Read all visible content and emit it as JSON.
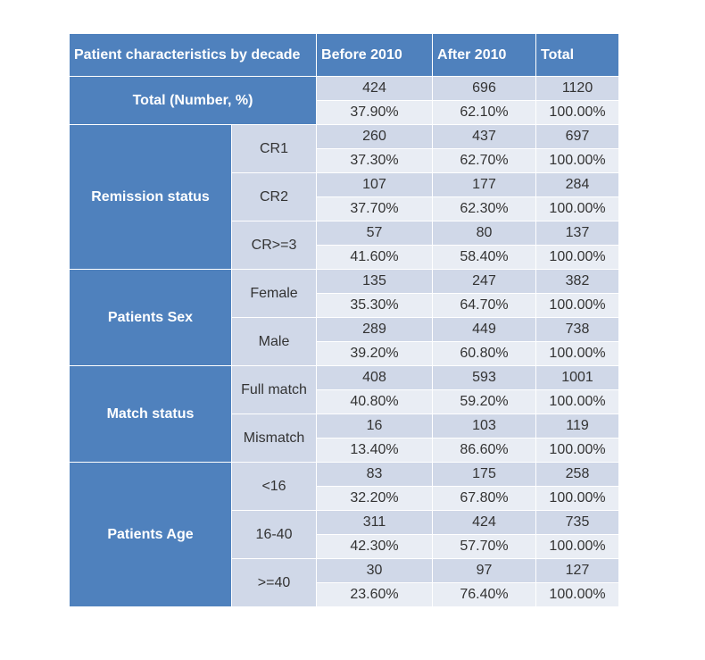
{
  "header": {
    "title": "Patient characteristics by decade",
    "col_before": "Before 2010",
    "col_after": "After 2010",
    "col_total": "Total"
  },
  "total_row": {
    "label": "Total (Number, %)",
    "n": [
      "424",
      "696",
      "1120"
    ],
    "pct": [
      "37.90%",
      "62.10%",
      "100.00%"
    ]
  },
  "groups": [
    {
      "label": "Remission status",
      "rows": [
        {
          "label": "CR1",
          "n": [
            "260",
            "437",
            "697"
          ],
          "pct": [
            "37.30%",
            "62.70%",
            "100.00%"
          ]
        },
        {
          "label": "CR2",
          "n": [
            "107",
            "177",
            "284"
          ],
          "pct": [
            "37.70%",
            "62.30%",
            "100.00%"
          ]
        },
        {
          "label": "CR>=3",
          "n": [
            "57",
            "80",
            "137"
          ],
          "pct": [
            "41.60%",
            "58.40%",
            "100.00%"
          ]
        }
      ]
    },
    {
      "label": "Patients Sex",
      "rows": [
        {
          "label": "Female",
          "n": [
            "135",
            "247",
            "382"
          ],
          "pct": [
            "35.30%",
            "64.70%",
            "100.00%"
          ]
        },
        {
          "label": "Male",
          "n": [
            "289",
            "449",
            "738"
          ],
          "pct": [
            "39.20%",
            "60.80%",
            "100.00%"
          ]
        }
      ]
    },
    {
      "label": "Match status",
      "rows": [
        {
          "label": "Full match",
          "n": [
            "408",
            "593",
            "1001"
          ],
          "pct": [
            "40.80%",
            "59.20%",
            "100.00%"
          ]
        },
        {
          "label": "Mismatch",
          "n": [
            "16",
            "103",
            "119"
          ],
          "pct": [
            "13.40%",
            "86.60%",
            "100.00%"
          ]
        }
      ]
    },
    {
      "label": "Patients Age",
      "rows": [
        {
          "label": "<16",
          "n": [
            "83",
            "175",
            "258"
          ],
          "pct": [
            "32.20%",
            "67.80%",
            "100.00%"
          ]
        },
        {
          "label": "16-40",
          "n": [
            "311",
            "424",
            "735"
          ],
          "pct": [
            "42.30%",
            "57.70%",
            "100.00%"
          ]
        },
        {
          "label": ">=40",
          "n": [
            "30",
            "97",
            "127"
          ],
          "pct": [
            "23.60%",
            "76.40%",
            "100.00%"
          ]
        }
      ]
    }
  ]
}
